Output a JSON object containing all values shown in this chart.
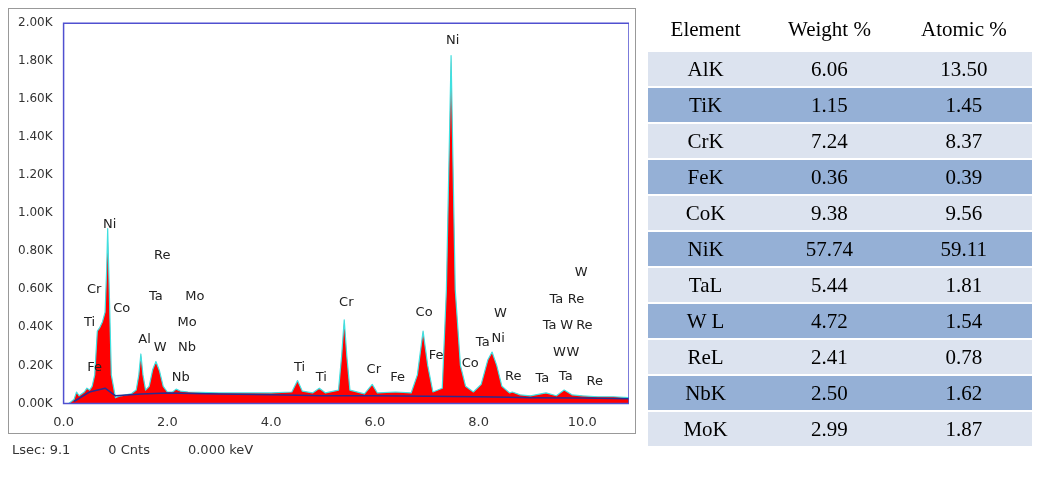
{
  "chart_data": [
    {
      "type": "area",
      "xlim": [
        0,
        10.9
      ],
      "ylim": [
        0,
        2000
      ],
      "xticks": [
        {
          "value": 0,
          "label": "0.0"
        },
        {
          "value": 2,
          "label": "2.0"
        },
        {
          "value": 4,
          "label": "4.0"
        },
        {
          "value": 6,
          "label": "6.0"
        },
        {
          "value": 8,
          "label": "8.0"
        },
        {
          "value": 10,
          "label": "10.0"
        }
      ],
      "yticks": [
        {
          "value": 0,
          "label": "0.00K"
        },
        {
          "value": 200,
          "label": "0.20K"
        },
        {
          "value": 400,
          "label": "0.40K"
        },
        {
          "value": 600,
          "label": "0.60K"
        },
        {
          "value": 800,
          "label": "0.80K"
        },
        {
          "value": 1000,
          "label": "1.00K"
        },
        {
          "value": 1200,
          "label": "1.20K"
        },
        {
          "value": 1400,
          "label": "1.40K"
        },
        {
          "value": 1600,
          "label": "1.60K"
        },
        {
          "value": 1800,
          "label": "1.80K"
        },
        {
          "value": 2000,
          "label": "2.00K"
        }
      ],
      "grid": false,
      "legend": false,
      "series": [
        {
          "type": "area",
          "color": "#ff0000",
          "x": [
            0.1,
            0.2,
            0.25,
            0.3,
            0.4,
            0.45,
            0.5,
            0.55,
            0.6,
            0.65,
            0.7,
            0.75,
            0.8,
            0.83,
            0.85,
            0.88,
            0.92,
            1.0,
            1.1,
            1.2,
            1.3,
            1.4,
            1.45,
            1.49,
            1.53,
            1.58,
            1.65,
            1.72,
            1.78,
            1.85,
            1.92,
            2.0,
            2.1,
            2.17,
            2.25,
            2.4,
            3.0,
            3.5,
            4.0,
            4.4,
            4.51,
            4.6,
            4.8,
            4.93,
            5.05,
            5.3,
            5.36,
            5.41,
            5.46,
            5.52,
            5.8,
            5.95,
            6.05,
            6.4,
            6.7,
            6.82,
            6.93,
            7.02,
            7.12,
            7.3,
            7.38,
            7.47,
            7.55,
            7.65,
            7.75,
            7.9,
            8.05,
            8.18,
            8.26,
            8.35,
            8.45,
            8.6,
            8.65,
            8.8,
            9.0,
            9.3,
            9.5,
            9.65,
            9.8,
            10.0,
            10.3,
            10.6,
            10.9
          ],
          "values": [
            0,
            20,
            60,
            40,
            60,
            80,
            70,
            90,
            150,
            380,
            400,
            430,
            480,
            700,
            920,
            600,
            150,
            30,
            40,
            45,
            50,
            70,
            150,
            260,
            150,
            70,
            90,
            180,
            220,
            170,
            90,
            60,
            60,
            75,
            65,
            60,
            55,
            55,
            55,
            60,
            120,
            65,
            55,
            80,
            55,
            70,
            250,
            440,
            250,
            70,
            50,
            100,
            55,
            60,
            55,
            150,
            380,
            200,
            60,
            80,
            600,
            1830,
            600,
            200,
            90,
            60,
            100,
            230,
            270,
            200,
            90,
            55,
            60,
            45,
            40,
            55,
            40,
            70,
            45,
            40,
            35,
            35,
            30
          ]
        },
        {
          "type": "line",
          "color": "#2b2b8f",
          "x": [
            0.2,
            0.5,
            0.8,
            1.0,
            1.5,
            2.0,
            3.0,
            4.0,
            5.0,
            6.0,
            7.0,
            8.0,
            9.0,
            10.0,
            10.9
          ],
          "values": [
            10,
            60,
            80,
            40,
            50,
            55,
            50,
            45,
            40,
            40,
            38,
            35,
            30,
            28,
            25
          ]
        }
      ],
      "annotations": [
        "Ni",
        "Re",
        "Cr",
        "Ta",
        "Mo",
        "Ti",
        "Co",
        "Mo",
        "Al",
        "W",
        "Nb",
        "Fe",
        "Nb",
        "Ti",
        "Ti",
        "Cr",
        "Cr",
        "Fe",
        "Co",
        "Fe",
        "Ni",
        "Co",
        "W",
        "Ni",
        "Ta",
        "Re",
        "Ta",
        "Ta",
        "Re",
        "W",
        "Ta",
        "Re",
        "Ta",
        "W",
        "Re",
        "W",
        "W",
        "Lsec: 9.1",
        "0 Cnts",
        "0.000 keV"
      ]
    },
    {
      "type": "other",
      "xlabel": "Element",
      "categories": [
        "AlK",
        "TiK",
        "CrK",
        "FeK",
        "CoK",
        "NiK",
        "TaL",
        "W L",
        "ReL",
        "NbK",
        "MoK"
      ],
      "data_labels": true,
      "series": [
        {
          "name": "Weight %",
          "colors": [
            "#dce3ef",
            "#95b0d6",
            "#dce3ef",
            "#95b0d6",
            "#dce3ef",
            "#95b0d6",
            "#dce3ef",
            "#95b0d6",
            "#dce3ef",
            "#95b0d6",
            "#dce3ef"
          ],
          "values": [
            6.06,
            1.15,
            7.24,
            0.36,
            9.38,
            57.74,
            5.44,
            4.72,
            2.41,
            2.5,
            2.99
          ],
          "value_labels": [
            "6.06",
            "1.15",
            "7.24",
            "0.36",
            "9.38",
            "57.74",
            "5.44",
            "4.72",
            "2.41",
            "2.50",
            "2.99"
          ]
        },
        {
          "name": "Atomic %",
          "colors": [
            "#dce3ef",
            "#95b0d6",
            "#dce3ef",
            "#95b0d6",
            "#dce3ef",
            "#95b0d6",
            "#dce3ef",
            "#95b0d6",
            "#dce3ef",
            "#95b0d6",
            "#dce3ef"
          ],
          "values": [
            13.5,
            1.45,
            8.37,
            0.39,
            9.56,
            59.11,
            1.81,
            1.54,
            0.78,
            1.62,
            1.87
          ],
          "value_labels": [
            "13.50",
            "1.45",
            "8.37",
            "0.39",
            "9.56",
            "59.11",
            "1.81",
            "1.54",
            "0.78",
            "1.62",
            "1.87"
          ]
        }
      ]
    }
  ]
}
